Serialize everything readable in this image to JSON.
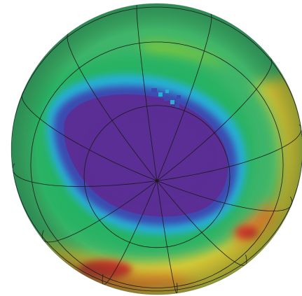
{
  "map": {
    "projection": "orthographic-polar-south",
    "colors": {
      "background": "#ffffff",
      "hole_core": "#5a2e94",
      "hole_edge": "#3e49b0",
      "collar": "#27b0d6",
      "mid_band": "#26b264",
      "outer_green": "#7fc83c",
      "ridge_yellow": "#dccb35",
      "ridge_orange": "#e5812c",
      "ridge_red": "#c6392a",
      "graticule": "#1a1a1a"
    }
  }
}
